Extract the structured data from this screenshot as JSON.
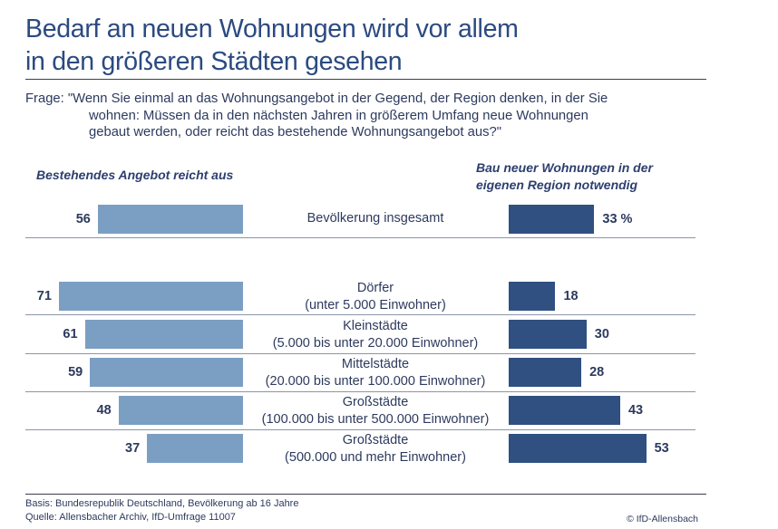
{
  "title": [
    "Bedarf an neuen Wohnungen wird vor allem",
    "in den größeren Städten gesehen"
  ],
  "question": {
    "prefix": "Frage: \"Wenn Sie einmal an das Wohnungsangebot in der Gegend, der Region denken, in der Sie",
    "line2": "wohnen: Müssen da in den nächsten Jahren in größerem Umfang neue Wohnungen",
    "line3": "gebaut werden, oder reicht das bestehende Wohnungsangebot aus?\""
  },
  "chart_data": {
    "type": "bar",
    "orientation": "horizontal-butterfly",
    "unit": "%",
    "series": [
      {
        "name": "Bestehendes Angebot reicht aus",
        "color": "#7b9fc3",
        "values": [
          56,
          71,
          61,
          59,
          48,
          37
        ],
        "labels": [
          "56",
          "71",
          "61",
          "59",
          "48",
          "37"
        ]
      },
      {
        "name": "Bau neuer Wohnungen in der eigenen Region notwendig",
        "color": "#2f5081",
        "values": [
          33,
          18,
          30,
          28,
          43,
          53
        ],
        "labels": [
          "33 %",
          "18",
          "30",
          "28",
          "43",
          "53"
        ]
      }
    ],
    "right_header_lines": [
      "Bau neuer Wohnungen in der",
      "eigenen Region notwendig"
    ],
    "categories": [
      [
        "Bevölkerung insgesamt"
      ],
      [
        "Dörfer",
        "(unter 5.000 Einwohner)"
      ],
      [
        "Kleinstädte",
        "(5.000 bis unter 20.000 Einwohner)"
      ],
      [
        "Mittelstädte",
        "(20.000 bis unter 100.000 Einwohner)"
      ],
      [
        "Großstädte",
        "(100.000 bis unter 500.000 Einwohner)"
      ],
      [
        "Großstädte",
        "(500.000 und mehr Einwohner)"
      ]
    ]
  },
  "footer": {
    "basis": "Basis: Bundesrepublik Deutschland, Bevölkerung ab 16 Jahre",
    "source": "Quelle: Allensbacher Archiv, IfD-Umfrage 11007",
    "copyright": "© IfD-Allensbach"
  }
}
